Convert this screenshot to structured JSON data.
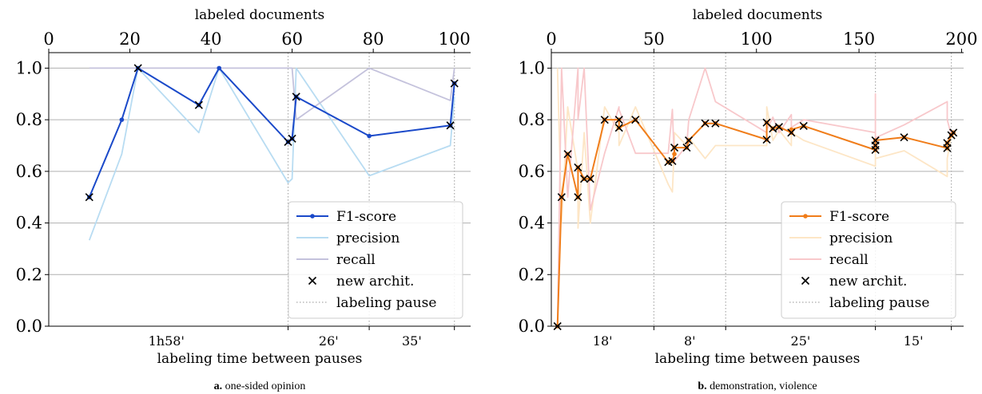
{
  "chart_data": [
    {
      "type": "line",
      "caption_letter": "a.",
      "caption_text": " one-sided opinion",
      "xlabel_top": "labeled documents",
      "xlabel_bottom": "labeling time between pauses",
      "xlim": [
        0,
        104
      ],
      "ylim": [
        0,
        1.06
      ],
      "xticks": [
        0,
        20,
        40,
        60,
        80,
        100
      ],
      "yticks": [
        "0.0",
        "0.2",
        "0.4",
        "0.6",
        "0.8",
        "1.0"
      ],
      "grid": "horizontal",
      "legend_position": "bottom-right",
      "pauses": [
        59,
        79,
        100
      ],
      "pause_labels": [
        {
          "text": "1h58'",
          "x": 29
        },
        {
          "text": "26'",
          "x": 69
        },
        {
          "text": "35'",
          "x": 89.5
        }
      ],
      "colors": {
        "f1": "#1a49c9",
        "precision": "#b8dcf2",
        "recall": "#c4c2dc"
      },
      "series": [
        {
          "name": "F1-score",
          "key": "f1",
          "points": [
            [
              10,
              0.5
            ],
            [
              18,
              0.8
            ],
            [
              22,
              1.0
            ],
            [
              37,
              0.857
            ],
            [
              42,
              1.0
            ],
            [
              59,
              0.714
            ],
            [
              60,
              0.727
            ],
            [
              61,
              0.889
            ],
            [
              79,
              0.737
            ],
            [
              99,
              0.778
            ],
            [
              100,
              0.941
            ]
          ]
        },
        {
          "name": "precision",
          "key": "precision",
          "points": [
            [
              10,
              0.333
            ],
            [
              18,
              0.667
            ],
            [
              22,
              1.0
            ],
            [
              37,
              0.75
            ],
            [
              42,
              1.0
            ],
            [
              59,
              0.556
            ],
            [
              60,
              0.571
            ],
            [
              61,
              1.0
            ],
            [
              79,
              0.583
            ],
            [
              99,
              0.7
            ],
            [
              100,
              0.889
            ]
          ]
        },
        {
          "name": "recall",
          "key": "recall",
          "points": [
            [
              10,
              1.0
            ],
            [
              18,
              1.0
            ],
            [
              22,
              1.0
            ],
            [
              37,
              1.0
            ],
            [
              42,
              1.0
            ],
            [
              59,
              1.0
            ],
            [
              60,
              1.0
            ],
            [
              61,
              0.8
            ],
            [
              79,
              1.0
            ],
            [
              99,
              0.875
            ],
            [
              100,
              1.0
            ]
          ]
        }
      ],
      "new_archit": [
        [
          10,
          0.5
        ],
        [
          22,
          1.0
        ],
        [
          37,
          0.857
        ],
        [
          59,
          0.714
        ],
        [
          60,
          0.727
        ],
        [
          61,
          0.889
        ],
        [
          99,
          0.778
        ],
        [
          100,
          0.941
        ]
      ],
      "legend": [
        "F1-score",
        "precision",
        "recall",
        "new archit.",
        "labeling pause"
      ]
    },
    {
      "type": "line",
      "caption_letter": "b.",
      "caption_text": " demonstration, violence",
      "xlabel_top": "labeled documents",
      "xlabel_bottom": "labeling time between pauses",
      "xlim": [
        0,
        201
      ],
      "ylim": [
        0,
        1.06
      ],
      "xticks": [
        0,
        50,
        100,
        150,
        200
      ],
      "yticks": [
        "0.0",
        "0.2",
        "0.4",
        "0.6",
        "0.8",
        "1.0"
      ],
      "grid": "horizontal",
      "legend_position": "bottom-right",
      "pauses": [
        50,
        85,
        158,
        195
      ],
      "pause_labels": [
        {
          "text": "18'",
          "x": 25
        },
        {
          "text": "8'",
          "x": 67.5
        },
        {
          "text": "25'",
          "x": 121.5
        },
        {
          "text": "15'",
          "x": 176.5
        }
      ],
      "colors": {
        "f1": "#f07d1a",
        "precision": "#fde6c6",
        "recall": "#f8c8cb"
      },
      "series": [
        {
          "name": "F1-score",
          "key": "f1",
          "points": [
            [
              3,
              0.0
            ],
            [
              5,
              0.5
            ],
            [
              8,
              0.667
            ],
            [
              13,
              0.5
            ],
            [
              13,
              0.615
            ],
            [
              16,
              0.571
            ],
            [
              19,
              0.571
            ],
            [
              26,
              0.8
            ],
            [
              33,
              0.8
            ],
            [
              33,
              0.769
            ],
            [
              41,
              0.8
            ],
            [
              57,
              0.636
            ],
            [
              59,
              0.64
            ],
            [
              60,
              0.667
            ],
            [
              60,
              0.692
            ],
            [
              66,
              0.692
            ],
            [
              67,
              0.72
            ],
            [
              75,
              0.786
            ],
            [
              80,
              0.786
            ],
            [
              105,
              0.723
            ],
            [
              105,
              0.789
            ],
            [
              108,
              0.766
            ],
            [
              111,
              0.772
            ],
            [
              117,
              0.75
            ],
            [
              117,
              0.762
            ],
            [
              123,
              0.776
            ],
            [
              158,
              0.683
            ],
            [
              158,
              0.7
            ],
            [
              158,
              0.72
            ],
            [
              172,
              0.732
            ],
            [
              193,
              0.69
            ],
            [
              193,
              0.71
            ],
            [
              195,
              0.74
            ],
            [
              196,
              0.75
            ]
          ]
        },
        {
          "name": "precision",
          "key": "precision",
          "points": [
            [
              3,
              1.0
            ],
            [
              5,
              0.4
            ],
            [
              8,
              0.85
            ],
            [
              13,
              0.6
            ],
            [
              13,
              0.38
            ],
            [
              16,
              0.75
            ],
            [
              19,
              0.4
            ],
            [
              26,
              0.85
            ],
            [
              33,
              0.75
            ],
            [
              33,
              0.7
            ],
            [
              41,
              0.85
            ],
            [
              57,
              0.55
            ],
            [
              59,
              0.52
            ],
            [
              60,
              0.7
            ],
            [
              60,
              0.75
            ],
            [
              66,
              0.7
            ],
            [
              67,
              0.73
            ],
            [
              75,
              0.65
            ],
            [
              80,
              0.7
            ],
            [
              105,
              0.7
            ],
            [
              105,
              0.85
            ],
            [
              108,
              0.72
            ],
            [
              111,
              0.76
            ],
            [
              117,
              0.7
            ],
            [
              117,
              0.75
            ],
            [
              123,
              0.72
            ],
            [
              158,
              0.62
            ],
            [
              158,
              0.7
            ],
            [
              158,
              0.65
            ],
            [
              172,
              0.68
            ],
            [
              193,
              0.58
            ],
            [
              193,
              0.65
            ],
            [
              195,
              0.74
            ],
            [
              196,
              0.73
            ]
          ]
        },
        {
          "name": "recall",
          "key": "recall",
          "points": [
            [
              3,
              0.0
            ],
            [
              5,
              1.0
            ],
            [
              8,
              0.5
            ],
            [
              13,
              1.0
            ],
            [
              13,
              0.8
            ],
            [
              16,
              1.0
            ],
            [
              19,
              0.45
            ],
            [
              26,
              0.67
            ],
            [
              33,
              0.85
            ],
            [
              33,
              0.84
            ],
            [
              41,
              0.67
            ],
            [
              57,
              0.67
            ],
            [
              59,
              0.84
            ],
            [
              60,
              0.63
            ],
            [
              60,
              0.64
            ],
            [
              66,
              0.7
            ],
            [
              67,
              0.8
            ],
            [
              75,
              1.0
            ],
            [
              80,
              0.87
            ],
            [
              105,
              0.75
            ],
            [
              105,
              0.76
            ],
            [
              108,
              0.81
            ],
            [
              111,
              0.75
            ],
            [
              117,
              0.82
            ],
            [
              117,
              0.77
            ],
            [
              123,
              0.8
            ],
            [
              158,
              0.75
            ],
            [
              158,
              0.9
            ],
            [
              158,
              0.73
            ],
            [
              172,
              0.78
            ],
            [
              193,
              0.87
            ],
            [
              193,
              0.8
            ],
            [
              195,
              0.74
            ],
            [
              196,
              0.76
            ]
          ]
        }
      ],
      "new_archit": [
        [
          3,
          0.0
        ],
        [
          5,
          0.5
        ],
        [
          8,
          0.667
        ],
        [
          13,
          0.5
        ],
        [
          13,
          0.615
        ],
        [
          16,
          0.571
        ],
        [
          19,
          0.571
        ],
        [
          26,
          0.8
        ],
        [
          33,
          0.8
        ],
        [
          33,
          0.769
        ],
        [
          41,
          0.8
        ],
        [
          57,
          0.636
        ],
        [
          59,
          0.64
        ],
        [
          60,
          0.692
        ],
        [
          66,
          0.692
        ],
        [
          67,
          0.72
        ],
        [
          75,
          0.786
        ],
        [
          80,
          0.786
        ],
        [
          105,
          0.723
        ],
        [
          105,
          0.789
        ],
        [
          108,
          0.766
        ],
        [
          111,
          0.772
        ],
        [
          117,
          0.75
        ],
        [
          123,
          0.776
        ],
        [
          158,
          0.683
        ],
        [
          158,
          0.7
        ],
        [
          158,
          0.72
        ],
        [
          172,
          0.732
        ],
        [
          193,
          0.69
        ],
        [
          193,
          0.71
        ],
        [
          195,
          0.74
        ],
        [
          196,
          0.75
        ]
      ],
      "legend": [
        "F1-score",
        "precision",
        "recall",
        "new archit.",
        "labeling pause"
      ]
    }
  ]
}
